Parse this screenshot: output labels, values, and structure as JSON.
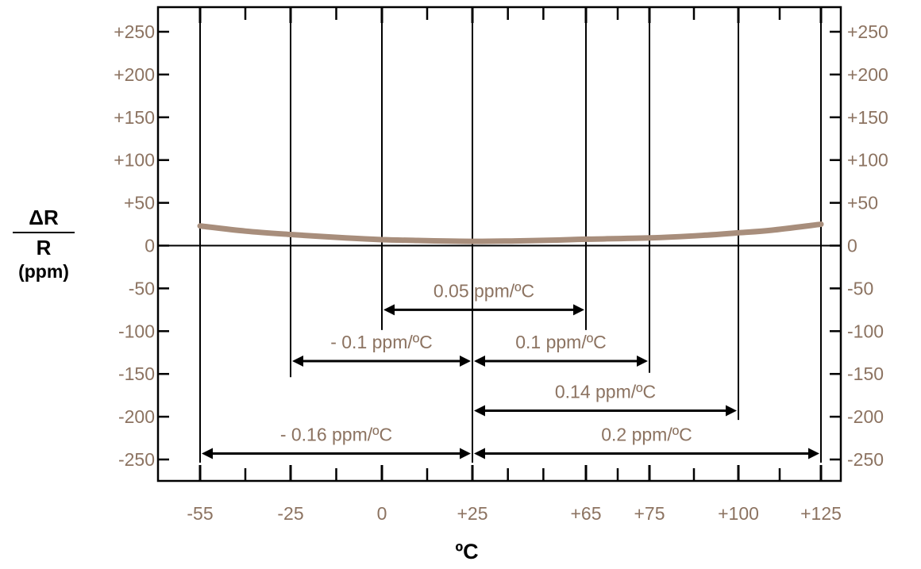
{
  "chart_data": {
    "type": "line",
    "ylabel": {
      "numerator": "ΔR",
      "denominator": "R",
      "unit": "(ppm)"
    },
    "xlabel": "ºC",
    "xlim": [
      -55,
      125
    ],
    "ylim": [
      -250,
      250
    ],
    "y_ticks": [
      250,
      200,
      150,
      100,
      50,
      0,
      -50,
      -100,
      -150,
      -200,
      -250
    ],
    "y_tick_labels": [
      "+250",
      "+200",
      "+150",
      "+100",
      "+50",
      "0",
      "-50",
      "-100",
      "-150",
      "-200",
      "-250"
    ],
    "x_ticks": [
      -55,
      -25,
      0,
      25,
      65,
      75,
      100,
      125
    ],
    "x_tick_labels": [
      "-55",
      "-25",
      "0",
      "+25",
      "+65",
      "+75",
      "+100",
      "+125"
    ],
    "minor_ticks_x": [
      -40,
      -12.5,
      12.5,
      37.5,
      50,
      70,
      87.5,
      112.5
    ],
    "grid": false,
    "series": [
      {
        "color": "#a88e7c",
        "x": [
          -55,
          -40,
          -25,
          -10,
          0,
          10,
          25,
          40,
          55,
          65,
          75,
          90,
          100,
          110,
          125
        ],
        "y": [
          23,
          17,
          13,
          9,
          7,
          6,
          5,
          5.5,
          6.5,
          7.5,
          9,
          12,
          15,
          18,
          25
        ]
      }
    ],
    "annotations": [
      {
        "label": "0.05 ppm/ºC",
        "from": 0,
        "to": 65,
        "y": -75
      },
      {
        "label": "- 0.1 ppm/ºC",
        "from": -25,
        "to": 25,
        "y": -135
      },
      {
        "label": "0.1 ppm/ºC",
        "from": 25,
        "to": 75,
        "y": -135
      },
      {
        "label": "0.14 ppm/ºC",
        "from": 25,
        "to": 100,
        "y": -193
      },
      {
        "label": "- 0.16 ppm/ºC",
        "from": -55,
        "to": 25,
        "y": -243
      },
      {
        "label": "0.2 ppm/ºC",
        "from": 25,
        "to": 125,
        "y": -243
      }
    ],
    "verticals": [
      {
        "x": -55,
        "y_bottom": -250
      },
      {
        "x": -25,
        "y_bottom": -150
      },
      {
        "x": 0,
        "y_bottom": -95
      },
      {
        "x": 25,
        "y_bottom": -250
      },
      {
        "x": 65,
        "y_bottom": -95
      },
      {
        "x": 75,
        "y_bottom": -145
      },
      {
        "x": 100,
        "y_bottom": -200
      },
      {
        "x": 125,
        "y_bottom": -250
      }
    ],
    "colors": {
      "label": "#8c7361",
      "curve": "#a88e7c",
      "axis": "#000000"
    }
  }
}
